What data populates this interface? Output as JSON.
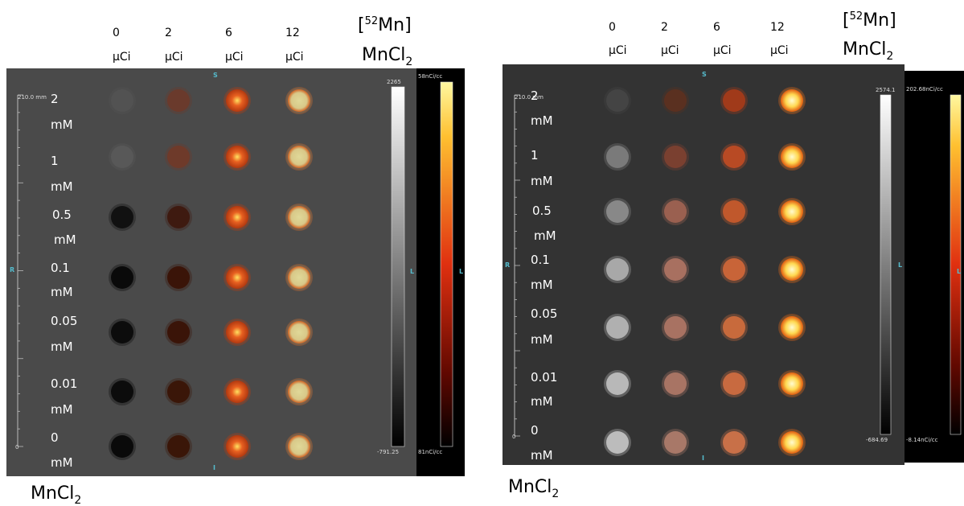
{
  "panels": [
    {
      "columns": [
        {
          "dose": "0",
          "unit": "µCi"
        },
        {
          "dose": "2",
          "unit": "µCi"
        },
        {
          "dose": "6",
          "unit": "µCi"
        },
        {
          "dose": "12",
          "unit": "µCi"
        }
      ],
      "title": {
        "pre": "[",
        "sup": "52",
        "post": "Mn]",
        "line2": "MnCl",
        "sub": "2"
      },
      "rows": [
        {
          "conc": "2",
          "unit": "mM"
        },
        {
          "conc": "1",
          "unit": "mM"
        },
        {
          "conc": "0.5",
          "unit": "mM"
        },
        {
          "conc": "0.1",
          "unit": "mM"
        },
        {
          "conc": "0.05",
          "unit": "mM"
        },
        {
          "conc": "0.01",
          "unit": "mM"
        },
        {
          "conc": "0",
          "unit": "mM"
        }
      ],
      "gray_max": "2265",
      "gray_min": "-791.25",
      "color_max": "58nCi/cc",
      "color_min": "81nCi/cc",
      "ruler": "210.0 mm",
      "ruler_zero": "0",
      "orient": {
        "s": "S",
        "i": "I",
        "r": "R",
        "l": "L",
        "l2": "L"
      },
      "caption": {
        "text": "MnCl",
        "sub": "2"
      }
    },
    {
      "columns": [
        {
          "dose": "0",
          "unit": "µCi"
        },
        {
          "dose": "2",
          "unit": "µCi"
        },
        {
          "dose": "6",
          "unit": "µCi"
        },
        {
          "dose": "12",
          "unit": "µCi"
        }
      ],
      "title": {
        "pre": "[",
        "sup": "52",
        "post": "Mn]",
        "line2": "MnCl",
        "sub": "2"
      },
      "rows": [
        {
          "conc": "2",
          "unit": "mM"
        },
        {
          "conc": "1",
          "unit": "mM"
        },
        {
          "conc": "0.5",
          "unit": "mM"
        },
        {
          "conc": "0.1",
          "unit": "mM"
        },
        {
          "conc": "0.05",
          "unit": "mM"
        },
        {
          "conc": "0.01",
          "unit": "mM"
        },
        {
          "conc": "0",
          "unit": "mM"
        }
      ],
      "gray_max": "2574.1",
      "gray_min": "-684.69",
      "color_max": "202.68nCi/cc",
      "color_min": "-8.14nCi/cc",
      "ruler": "210.0 mm",
      "ruler_zero": "0",
      "orient": {
        "s": "S",
        "i": "I",
        "r": "R",
        "l": "L",
        "l2": "L"
      },
      "caption": {
        "text": "MnCl",
        "sub": "2"
      }
    }
  ]
}
